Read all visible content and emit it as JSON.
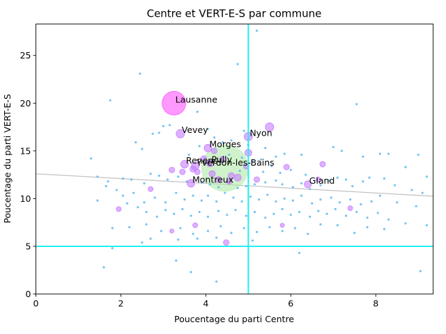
{
  "chart_data": {
    "type": "scatter",
    "title": "Centre et VERT-E-S par commune",
    "xlabel": "Poucentage du parti Centre",
    "ylabel": "Poucentage du parti VERT-E-S",
    "xlim": [
      0,
      9.35
    ],
    "ylim": [
      0,
      28.3
    ],
    "x_ticks": [
      0,
      2,
      4,
      6,
      8
    ],
    "y_ticks": [
      0,
      5,
      10,
      15,
      20,
      25
    ],
    "grid": false,
    "reference_lines": {
      "vertical_x": 5,
      "horizontal_y": 5,
      "color": "#22eeee"
    },
    "trend_line": {
      "x": [
        0,
        9.35
      ],
      "y": [
        12.6,
        10.25
      ],
      "color": "#c0c0c0"
    },
    "colors": {
      "small_points": "#5ab8f0",
      "large_points": "#c77dff",
      "highlight": "#ff55ff",
      "green_blob": "#a8e8a0"
    },
    "highlighted": [
      {
        "name": "Lausanne",
        "x": 3.25,
        "y": 20.0,
        "size": 34,
        "color": "#ff55ff"
      },
      {
        "name": "Vevey",
        "x": 3.4,
        "y": 16.8,
        "size": 12,
        "color": "#c77dff"
      },
      {
        "name": "Nyon",
        "x": 5.0,
        "y": 16.5,
        "size": 12,
        "color": "#c77dff"
      },
      {
        "name": "Morges",
        "x": 4.05,
        "y": 15.3,
        "size": 11,
        "color": "#c77dff"
      },
      {
        "name": "Renens",
        "x": 3.5,
        "y": 13.6,
        "size": 11,
        "color": "#c77dff"
      },
      {
        "name": "Yverdon-les-Bains",
        "x": 3.75,
        "y": 13.4,
        "size": 11,
        "color": "#c77dff"
      },
      {
        "name": "Pully",
        "x": 4.1,
        "y": 13.7,
        "size": 10,
        "color": "#c77dff"
      },
      {
        "name": "Montreux",
        "x": 3.65,
        "y": 11.6,
        "size": 11,
        "color": "#c77dff"
      },
      {
        "name": "Gland",
        "x": 6.4,
        "y": 11.5,
        "size": 10,
        "color": "#c77dff"
      }
    ],
    "large_points": [
      {
        "x": 5.5,
        "y": 17.5,
        "size": 12
      },
      {
        "x": 5.0,
        "y": 14.8,
        "size": 10
      },
      {
        "x": 3.2,
        "y": 13.0,
        "size": 8
      },
      {
        "x": 3.45,
        "y": 12.8,
        "size": 8
      },
      {
        "x": 3.8,
        "y": 12.8,
        "size": 8
      },
      {
        "x": 4.15,
        "y": 12.6,
        "size": 9
      },
      {
        "x": 4.6,
        "y": 12.4,
        "size": 9
      },
      {
        "x": 4.75,
        "y": 12.2,
        "size": 10
      },
      {
        "x": 4.3,
        "y": 12.0,
        "size": 9
      },
      {
        "x": 4.55,
        "y": 11.8,
        "size": 8
      },
      {
        "x": 5.2,
        "y": 12.0,
        "size": 8
      },
      {
        "x": 5.9,
        "y": 13.3,
        "size": 8
      },
      {
        "x": 6.75,
        "y": 13.6,
        "size": 8
      },
      {
        "x": 3.7,
        "y": 13.1,
        "size": 9
      },
      {
        "x": 4.4,
        "y": 14.1,
        "size": 9
      },
      {
        "x": 4.95,
        "y": 13.4,
        "size": 8
      },
      {
        "x": 4.48,
        "y": 5.4,
        "size": 8
      },
      {
        "x": 1.95,
        "y": 8.9,
        "size": 7
      },
      {
        "x": 2.7,
        "y": 11.0,
        "size": 7
      },
      {
        "x": 3.75,
        "y": 7.2,
        "size": 7
      },
      {
        "x": 6.65,
        "y": 12.0,
        "size": 7
      },
      {
        "x": 7.4,
        "y": 9.0,
        "size": 7
      },
      {
        "x": 5.8,
        "y": 7.2,
        "size": 6
      },
      {
        "x": 3.2,
        "y": 6.6,
        "size": 6
      },
      {
        "x": 4.2,
        "y": 15.0,
        "size": 8
      },
      {
        "x": 3.95,
        "y": 14.2,
        "size": 8
      }
    ],
    "green_blob": {
      "x": 4.45,
      "y": 13.2,
      "size": 34
    },
    "small_points": [
      [
        1.75,
        20.3
      ],
      [
        2.45,
        23.1
      ],
      [
        4.75,
        24.1
      ],
      [
        5.2,
        27.6
      ],
      [
        3.0,
        17.6
      ],
      [
        3.15,
        17.7
      ],
      [
        2.75,
        16.8
      ],
      [
        2.9,
        16.9
      ],
      [
        2.35,
        15.9
      ],
      [
        2.5,
        15.2
      ],
      [
        3.8,
        19.1
      ],
      [
        4.05,
        17.3
      ],
      [
        4.2,
        16.4
      ],
      [
        4.4,
        15.9
      ],
      [
        4.6,
        16.1
      ],
      [
        4.9,
        17.1
      ],
      [
        5.0,
        15.6
      ],
      [
        5.4,
        15.3
      ],
      [
        5.85,
        14.7
      ],
      [
        6.25,
        14.6
      ],
      [
        7.0,
        15.4
      ],
      [
        7.2,
        15.0
      ],
      [
        7.7,
        14.4
      ],
      [
        8.3,
        14.7
      ],
      [
        9.0,
        14.6
      ],
      [
        1.3,
        14.2
      ],
      [
        1.45,
        12.3
      ],
      [
        1.7,
        11.8
      ],
      [
        1.65,
        11.3
      ],
      [
        2.05,
        12.1
      ],
      [
        2.25,
        12.0
      ],
      [
        2.55,
        11.6
      ],
      [
        2.7,
        12.6
      ],
      [
        2.9,
        12.4
      ],
      [
        3.1,
        12.0
      ],
      [
        3.35,
        12.3
      ],
      [
        3.55,
        11.8
      ],
      [
        3.9,
        11.7
      ],
      [
        4.1,
        11.5
      ],
      [
        4.3,
        11.2
      ],
      [
        4.75,
        11.1
      ],
      [
        4.95,
        11.3
      ],
      [
        5.15,
        11.5
      ],
      [
        5.4,
        11.7
      ],
      [
        5.65,
        11.9
      ],
      [
        5.8,
        11.5
      ],
      [
        6.05,
        11.2
      ],
      [
        6.25,
        11.6
      ],
      [
        6.45,
        11.0
      ],
      [
        6.7,
        11.4
      ],
      [
        6.9,
        11.9
      ],
      [
        7.1,
        12.2
      ],
      [
        7.3,
        12.0
      ],
      [
        7.45,
        11.3
      ],
      [
        7.7,
        11.8
      ],
      [
        7.85,
        12.2
      ],
      [
        8.2,
        12.1
      ],
      [
        8.45,
        11.4
      ],
      [
        8.85,
        10.9
      ],
      [
        9.1,
        10.6
      ],
      [
        1.45,
        9.8
      ],
      [
        2.05,
        10.3
      ],
      [
        2.3,
        10.6
      ],
      [
        2.55,
        9.6
      ],
      [
        2.8,
        10.1
      ],
      [
        3.05,
        9.6
      ],
      [
        3.3,
        10.6
      ],
      [
        3.5,
        9.9
      ],
      [
        3.7,
        10.3
      ],
      [
        3.9,
        9.8
      ],
      [
        4.05,
        10.3
      ],
      [
        4.25,
        9.7
      ],
      [
        4.45,
        10.6
      ],
      [
        4.65,
        10.1
      ],
      [
        4.85,
        9.7
      ],
      [
        5.05,
        10.2
      ],
      [
        5.25,
        9.9
      ],
      [
        5.45,
        10.4
      ],
      [
        5.65,
        9.7
      ],
      [
        5.85,
        10.0
      ],
      [
        6.05,
        9.8
      ],
      [
        6.25,
        10.3
      ],
      [
        6.5,
        9.5
      ],
      [
        6.7,
        9.9
      ],
      [
        6.95,
        10.1
      ],
      [
        7.15,
        9.6
      ],
      [
        7.4,
        9.9
      ],
      [
        7.65,
        9.4
      ],
      [
        7.9,
        9.7
      ],
      [
        8.1,
        10.3
      ],
      [
        8.5,
        9.6
      ],
      [
        8.95,
        9.2
      ],
      [
        2.4,
        9.1
      ],
      [
        2.6,
        8.6
      ],
      [
        2.85,
        8.1
      ],
      [
        3.05,
        8.8
      ],
      [
        3.25,
        8.4
      ],
      [
        3.45,
        8.9
      ],
      [
        3.65,
        8.2
      ],
      [
        3.85,
        8.6
      ],
      [
        4.05,
        8.1
      ],
      [
        4.3,
        8.7
      ],
      [
        4.5,
        8.3
      ],
      [
        4.7,
        8.8
      ],
      [
        4.95,
        8.2
      ],
      [
        5.15,
        8.6
      ],
      [
        5.4,
        8.0
      ],
      [
        5.6,
        8.4
      ],
      [
        5.8,
        8.9
      ],
      [
        6.0,
        8.3
      ],
      [
        6.2,
        8.6
      ],
      [
        6.45,
        8.1
      ],
      [
        6.65,
        8.7
      ],
      [
        6.85,
        8.4
      ],
      [
        7.05,
        8.9
      ],
      [
        7.3,
        8.2
      ],
      [
        7.55,
        8.6
      ],
      [
        7.8,
        8.0
      ],
      [
        8.05,
        8.5
      ],
      [
        8.3,
        7.8
      ],
      [
        1.8,
        6.9
      ],
      [
        2.2,
        7.0
      ],
      [
        2.6,
        7.3
      ],
      [
        2.95,
        6.6
      ],
      [
        3.4,
        6.9
      ],
      [
        3.7,
        6.3
      ],
      [
        4.05,
        6.6
      ],
      [
        4.35,
        7.1
      ],
      [
        4.6,
        6.4
      ],
      [
        4.9,
        6.9
      ],
      [
        5.2,
        6.5
      ],
      [
        5.5,
        7.0
      ],
      [
        5.8,
        6.6
      ],
      [
        6.1,
        6.9
      ],
      [
        6.4,
        6.3
      ],
      [
        6.7,
        7.3
      ],
      [
        7.1,
        7.2
      ],
      [
        7.5,
        6.4
      ],
      [
        7.8,
        7.0
      ],
      [
        8.2,
        6.8
      ],
      [
        8.7,
        7.4
      ],
      [
        9.2,
        7.2
      ],
      [
        2.5,
        5.4
      ],
      [
        2.7,
        5.8
      ],
      [
        3.35,
        5.7
      ],
      [
        3.8,
        5.8
      ],
      [
        4.25,
        5.9
      ],
      [
        5.1,
        5.6
      ],
      [
        6.2,
        4.3
      ],
      [
        3.3,
        3.5
      ],
      [
        3.65,
        2.3
      ],
      [
        1.6,
        2.8
      ],
      [
        1.8,
        4.8
      ],
      [
        9.05,
        2.4
      ],
      [
        4.25,
        1.3
      ],
      [
        7.55,
        19.9
      ],
      [
        8.1,
        14.7
      ],
      [
        4.8,
        12.9
      ],
      [
        5.1,
        13.9
      ],
      [
        5.35,
        12.8
      ],
      [
        5.55,
        13.4
      ],
      [
        5.75,
        12.7
      ],
      [
        6.0,
        13.0
      ],
      [
        6.35,
        12.5
      ],
      [
        3.6,
        14.6
      ],
      [
        3.85,
        15.5
      ],
      [
        4.55,
        14.6
      ],
      [
        4.85,
        14.3
      ],
      [
        5.3,
        14.1
      ],
      [
        5.65,
        14.4
      ],
      [
        2.15,
        9.5
      ],
      [
        1.9,
        10.9
      ],
      [
        9.2,
        12.3
      ],
      [
        8.7,
        13.3
      ]
    ]
  }
}
